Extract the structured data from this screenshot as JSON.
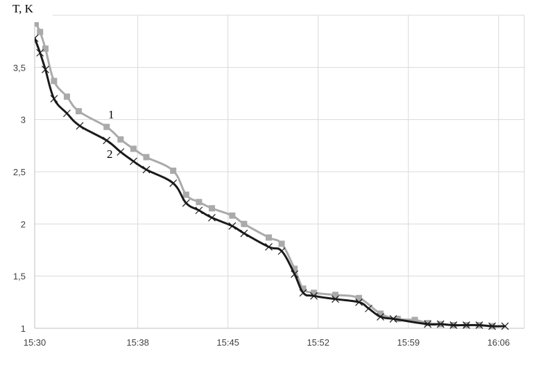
{
  "chart_data": {
    "type": "line",
    "title": "",
    "xlabel": "",
    "ylabel": "T, K",
    "ylim": [
      1,
      4
    ],
    "yticks": [
      1,
      1.5,
      2,
      2.5,
      3,
      3.5
    ],
    "ytick_labels": [
      "1",
      "1,5",
      "2",
      "2,5",
      "3",
      "3,5"
    ],
    "xlim": [
      "15:30",
      "16:08"
    ],
    "xticks": [
      "15:30",
      "15:38",
      "15:45",
      "15:52",
      "15:59",
      "16:06"
    ],
    "grid": true,
    "legend": "none",
    "series": [
      {
        "label": "1",
        "color": "#aaaaaa",
        "marker": "square",
        "points": [
          [
            "15:30:05",
            3.92
          ],
          [
            "15:30:25",
            3.84
          ],
          [
            "15:30:50",
            3.68
          ],
          [
            "15:31:30",
            3.37
          ],
          [
            "15:32:30",
            3.22
          ],
          [
            "15:33:25",
            3.08
          ],
          [
            "15:35:35",
            2.93
          ],
          [
            "15:36:40",
            2.81
          ],
          [
            "15:37:40",
            2.72
          ],
          [
            "15:38:40",
            2.64
          ],
          [
            "15:40:45",
            2.51
          ],
          [
            "15:41:45",
            2.28
          ],
          [
            "15:42:45",
            2.21
          ],
          [
            "15:43:45",
            2.15
          ],
          [
            "15:45:20",
            2.08
          ],
          [
            "15:46:15",
            2.0
          ],
          [
            "15:48:10",
            1.87
          ],
          [
            "15:49:10",
            1.81
          ],
          [
            "15:50:10",
            1.57
          ],
          [
            "15:50:50",
            1.38
          ],
          [
            "15:51:40",
            1.34
          ],
          [
            "15:53:20",
            1.32
          ],
          [
            "15:55:10",
            1.29
          ],
          [
            "15:56:50",
            1.14
          ],
          [
            "15:58:10",
            1.09
          ],
          [
            "15:59:30",
            1.08
          ],
          [
            "16:00:30",
            1.05
          ],
          [
            "16:01:30",
            1.04
          ],
          [
            "16:02:30",
            1.03
          ],
          [
            "16:03:30",
            1.03
          ],
          [
            "16:04:30",
            1.03
          ],
          [
            "16:05:30",
            1.02
          ]
        ]
      },
      {
        "label": "2",
        "color": "#1a1a1a",
        "marker": "x",
        "points": [
          [
            "15:30:00",
            3.78
          ],
          [
            "15:30:25",
            3.64
          ],
          [
            "15:30:50",
            3.48
          ],
          [
            "15:31:30",
            3.2
          ],
          [
            "15:32:30",
            3.06
          ],
          [
            "15:33:30",
            2.94
          ],
          [
            "15:35:35",
            2.8
          ],
          [
            "15:36:40",
            2.69
          ],
          [
            "15:37:40",
            2.6
          ],
          [
            "15:38:40",
            2.52
          ],
          [
            "15:40:45",
            2.39
          ],
          [
            "15:41:45",
            2.2
          ],
          [
            "15:42:45",
            2.13
          ],
          [
            "15:43:45",
            2.06
          ],
          [
            "15:45:20",
            1.98
          ],
          [
            "15:46:15",
            1.91
          ],
          [
            "15:48:10",
            1.78
          ],
          [
            "15:49:10",
            1.74
          ],
          [
            "15:50:10",
            1.52
          ],
          [
            "15:50:50",
            1.34
          ],
          [
            "15:51:40",
            1.31
          ],
          [
            "15:53:20",
            1.28
          ],
          [
            "15:55:10",
            1.25
          ],
          [
            "15:55:55",
            1.19
          ],
          [
            "15:56:50",
            1.11
          ],
          [
            "15:57:50",
            1.09
          ],
          [
            "16:00:30",
            1.04
          ],
          [
            "16:01:30",
            1.04
          ],
          [
            "16:02:30",
            1.03
          ],
          [
            "16:03:30",
            1.03
          ],
          [
            "16:04:30",
            1.03
          ],
          [
            "16:05:30",
            1.02
          ],
          [
            "16:06:30",
            1.02
          ]
        ]
      }
    ]
  }
}
